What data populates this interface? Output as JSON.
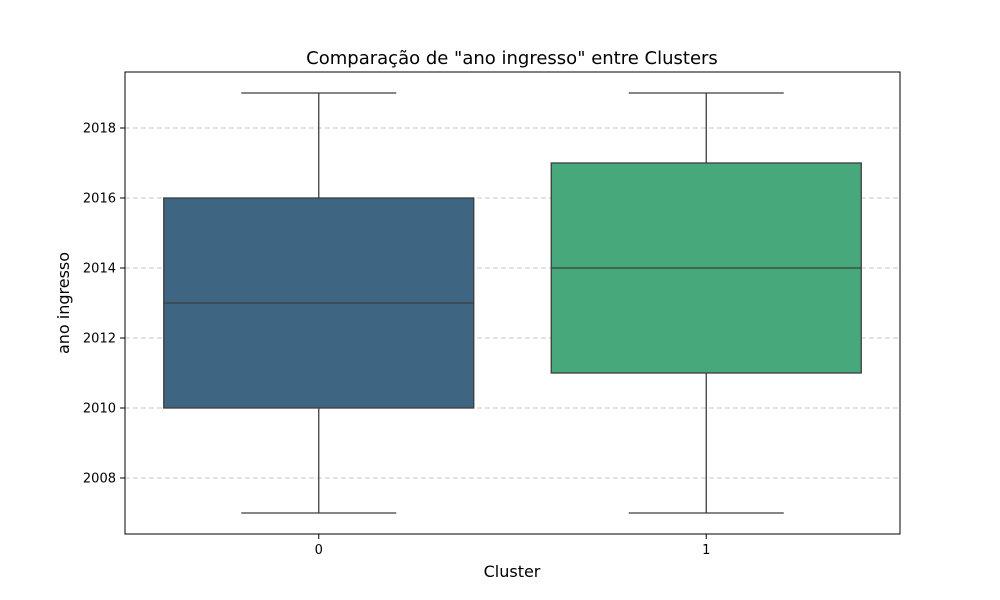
{
  "chart_data": {
    "type": "box",
    "title": "Comparação de \"ano ingresso\" entre Clusters",
    "xlabel": "Cluster",
    "ylabel": "ano ingresso",
    "ylim": [
      2006.4,
      2019.6
    ],
    "yticks": [
      "2008",
      "2010",
      "2012",
      "2014",
      "2016",
      "2018"
    ],
    "grid": true,
    "categories": [
      "0",
      "1"
    ],
    "boxes": [
      {
        "category": "0",
        "whisker_low": 2007,
        "q1": 2010,
        "median": 2013,
        "q3": 2016,
        "whisker_high": 2019,
        "color": "#3e6683"
      },
      {
        "category": "1",
        "whisker_low": 2007,
        "q1": 2011,
        "median": 2014,
        "q3": 2017,
        "whisker_high": 2019,
        "color": "#47a97b"
      }
    ]
  }
}
